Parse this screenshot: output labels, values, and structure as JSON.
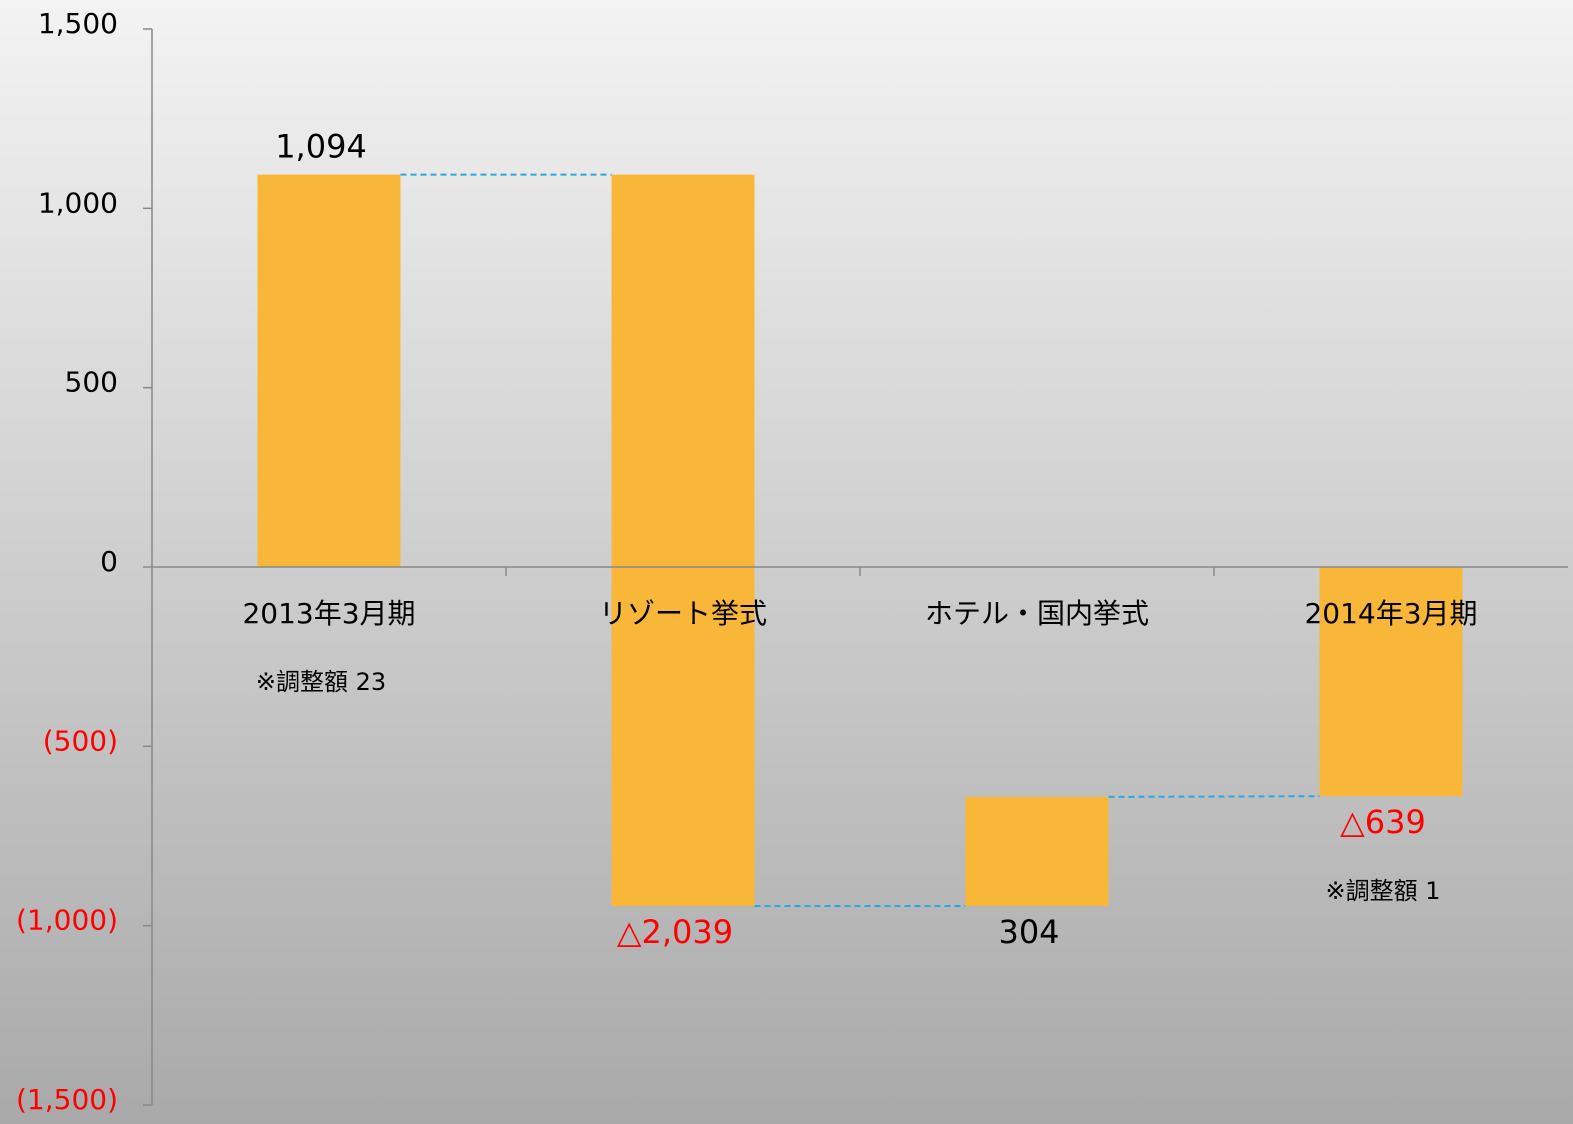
{
  "chart_data": {
    "type": "waterfall",
    "categories": [
      "2013年3月期",
      "リゾート挙式",
      "ホテル・国内挙式",
      "2014年3月期"
    ],
    "values": [
      1094,
      -2039,
      304,
      -639
    ],
    "value_labels": [
      "1,094",
      "△2,039",
      "304",
      "△639"
    ],
    "is_total": [
      true,
      false,
      false,
      true
    ],
    "notes": [
      "※調整額 23",
      null,
      null,
      "※調整額 1"
    ],
    "color": "#f9b73a",
    "connector_color": "#29a9e0",
    "negative_label_color": "#ff0000",
    "ylim": [
      -1500,
      1500
    ],
    "yticks": [
      {
        "value": -1500,
        "label": "(1,500)"
      },
      {
        "value": -1000,
        "label": "(1,000)"
      },
      {
        "value": -500,
        "label": "(500)"
      },
      0,
      500,
      {
        "value": 1000,
        "label": "1,000"
      },
      {
        "value": 1500,
        "label": "1,500"
      }
    ]
  }
}
